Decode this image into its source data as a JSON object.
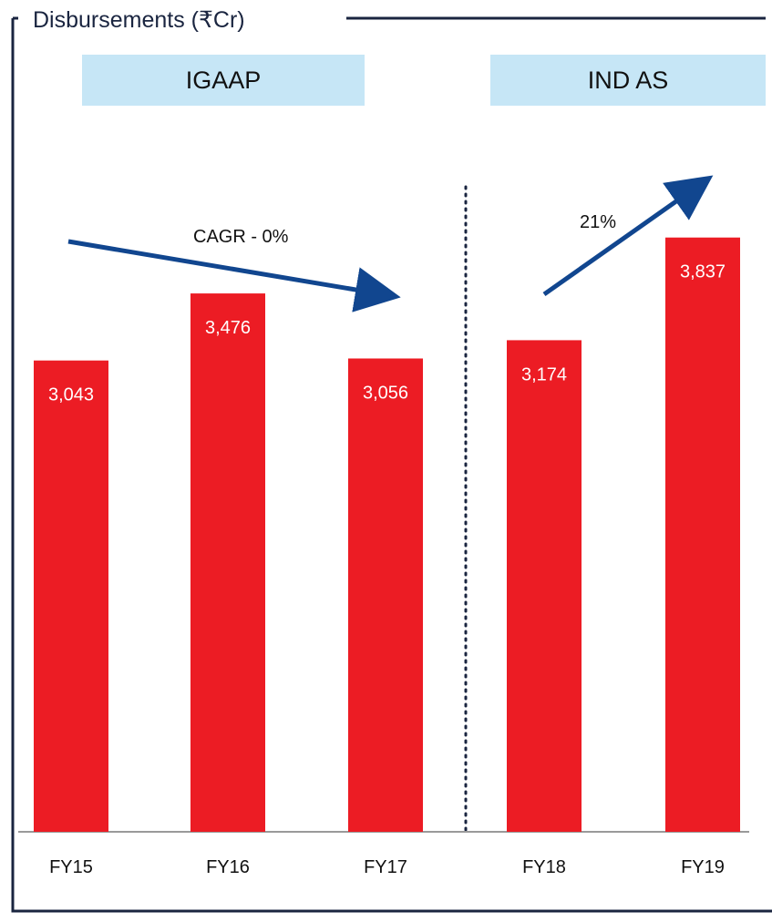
{
  "chart_data": {
    "type": "bar",
    "title": "Disbursements (₹Cr)",
    "categories": [
      "FY15",
      "FY16",
      "FY17",
      "FY18",
      "FY19"
    ],
    "values": [
      3043,
      3476,
      3056,
      3174,
      3837
    ],
    "value_labels": [
      "3,043",
      "3,476",
      "3,056",
      "3,174",
      "3,837"
    ],
    "sections": [
      {
        "label": "IGAAP",
        "categories": [
          "FY15",
          "FY16",
          "FY17"
        ]
      },
      {
        "label": "IND AS",
        "categories": [
          "FY18",
          "FY19"
        ]
      }
    ],
    "annotations": {
      "igaap_trend": "CAGR - 0%",
      "indas_trend": "21%"
    },
    "ylim": [
      0,
      5000
    ],
    "grid": false,
    "legend": "none",
    "colors": {
      "bar": "#ec1c24",
      "arrow": "#11468f",
      "frame": "#1a2540",
      "section_box": "#c6e6f6",
      "divider": "#1a2540"
    }
  }
}
